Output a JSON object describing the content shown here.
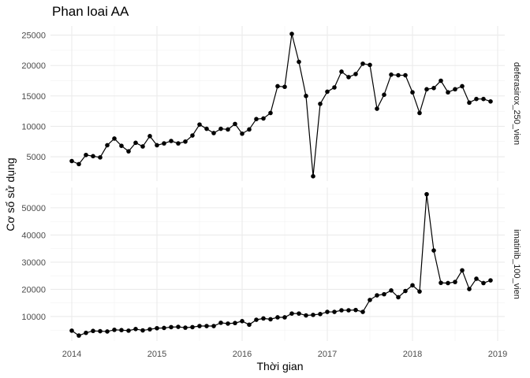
{
  "chart_data": {
    "type": "line",
    "title": "Phan loai AA",
    "xlabel": "Thời gian",
    "ylabel": "Cơ số sử dụng",
    "x_ticks": [
      "2014",
      "2015",
      "2016",
      "2017",
      "2018",
      "2019"
    ],
    "x_range": [
      "2013-10",
      "2019-02"
    ],
    "grid": true,
    "legend": "none",
    "months": [
      "2014-01",
      "2014-02",
      "2014-03",
      "2014-04",
      "2014-05",
      "2014-06",
      "2014-07",
      "2014-08",
      "2014-09",
      "2014-10",
      "2014-11",
      "2014-12",
      "2015-01",
      "2015-02",
      "2015-03",
      "2015-04",
      "2015-05",
      "2015-06",
      "2015-07",
      "2015-08",
      "2015-09",
      "2015-10",
      "2015-11",
      "2015-12",
      "2016-01",
      "2016-02",
      "2016-03",
      "2016-04",
      "2016-05",
      "2016-06",
      "2016-07",
      "2016-08",
      "2016-09",
      "2016-10",
      "2016-11",
      "2016-12",
      "2017-01",
      "2017-02",
      "2017-03",
      "2017-04",
      "2017-05",
      "2017-06",
      "2017-07",
      "2017-08",
      "2017-09",
      "2017-10",
      "2017-11",
      "2017-12",
      "2018-01",
      "2018-02",
      "2018-03",
      "2018-04",
      "2018-05",
      "2018-06",
      "2018-07",
      "2018-08",
      "2018-09",
      "2018-10",
      "2018-11",
      "2018-12"
    ],
    "panels": [
      {
        "strip": "deferasirox_250_vien",
        "y_ticks": [
          5000,
          10000,
          15000,
          20000,
          25000
        ],
        "ylim": [
          1000,
          26500
        ],
        "values": [
          4300,
          3800,
          5300,
          5100,
          4900,
          6900,
          8000,
          6800,
          5900,
          7300,
          6700,
          8400,
          6900,
          7200,
          7600,
          7200,
          7500,
          8500,
          10300,
          9600,
          8900,
          9600,
          9500,
          10400,
          8800,
          9500,
          11200,
          11300,
          12200,
          16600,
          16500,
          25200,
          20600,
          15000,
          1800,
          13700,
          15700,
          16400,
          19000,
          18100,
          18600,
          20300,
          20100,
          12900,
          15200,
          18500,
          18400,
          18400,
          15600,
          12200,
          16100,
          16300,
          17500,
          15600,
          16100,
          16600,
          13900,
          14500,
          14500,
          14100
        ]
      },
      {
        "strip": "imatinib_100_vien",
        "y_ticks": [
          10000,
          20000,
          30000,
          40000,
          50000
        ],
        "ylim": [
          1000,
          57500
        ],
        "values": [
          4800,
          3000,
          4000,
          4700,
          4600,
          4500,
          5100,
          5000,
          4800,
          5400,
          4900,
          5300,
          5700,
          5800,
          6100,
          6200,
          5900,
          6100,
          6500,
          6500,
          6500,
          7700,
          7400,
          7600,
          8300,
          7000,
          8800,
          9300,
          9000,
          9700,
          9700,
          11100,
          11100,
          10400,
          10600,
          10900,
          11700,
          11700,
          12300,
          12300,
          12400,
          11700,
          16100,
          17800,
          18200,
          19600,
          17100,
          19400,
          21500,
          19200,
          55000,
          34300,
          22400,
          22300,
          22700,
          27000,
          20100,
          23900,
          22300,
          23300
        ]
      }
    ]
  }
}
